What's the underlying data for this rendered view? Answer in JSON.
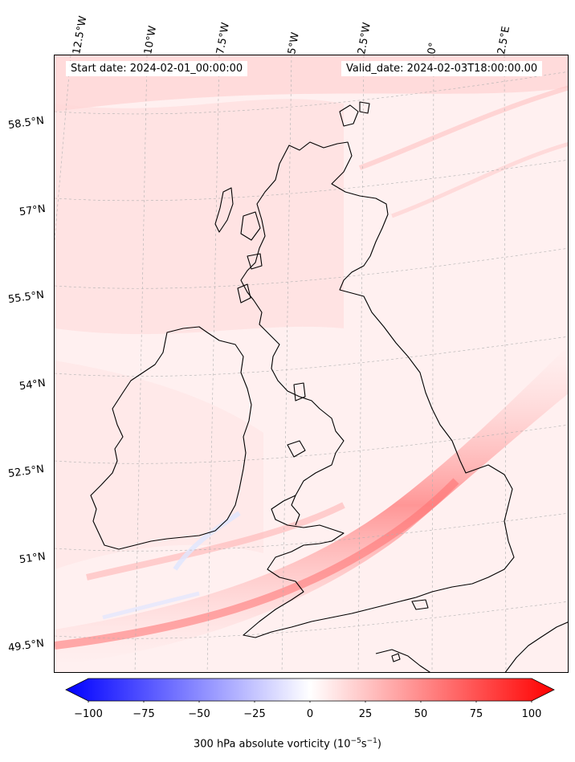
{
  "annotations": {
    "start_date": "Start date: 2024-02-01_00:00:00",
    "valid_date": "Valid_date: 2024-02-03T18:00:00.00"
  },
  "longitude_labels": [
    "12.5°W",
    "10°W",
    "7.5°W",
    "5°W",
    "2.5°W",
    "0°",
    "2.5°E"
  ],
  "latitude_labels": [
    "58.5°N",
    "57°N",
    "55.5°N",
    "54°N",
    "52.5°N",
    "51°N",
    "49.5°N"
  ],
  "colorbar": {
    "label_prefix": "300 hPa absolute vorticity (10",
    "label_exp1": "−5",
    "label_mid": "s",
    "label_exp2": "−1",
    "label_suffix": ")",
    "ticks": [
      "−100",
      "−75",
      "−50",
      "−25",
      "0",
      "25",
      "50",
      "75",
      "100"
    ],
    "min": -100,
    "max": 100,
    "color_min": "#0000ff",
    "color_mid": "#ffffff",
    "color_max": "#ff0000"
  },
  "colors": {
    "coastline": "#000000",
    "background_field": "#fff0f0",
    "jet_band": "#ff9090"
  }
}
